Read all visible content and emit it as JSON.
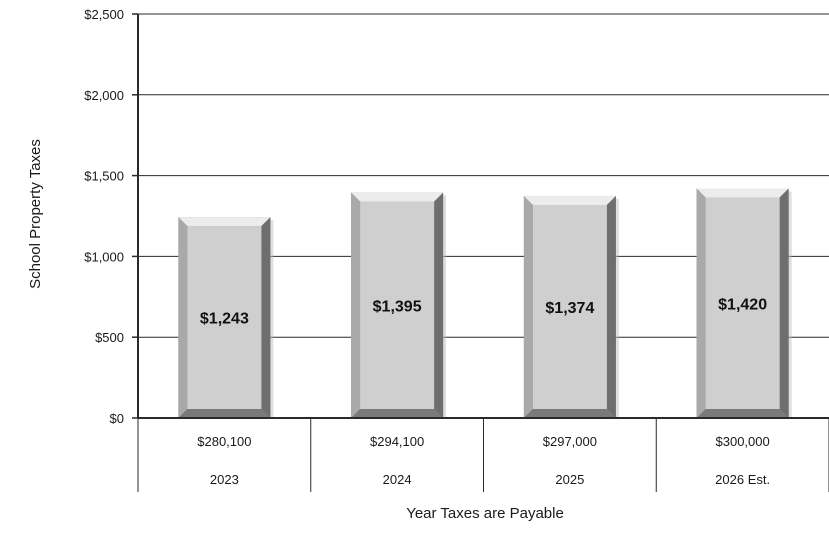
{
  "chart_data": {
    "type": "bar",
    "categories": [
      "2023",
      "2024",
      "2025",
      "2026 Est."
    ],
    "values": [
      1243,
      1395,
      1374,
      1420
    ],
    "value_labels": [
      "$1,243",
      "$1,395",
      "$1,374",
      "$1,420"
    ],
    "category_values": [
      "$280,100",
      "$294,100",
      "$297,000",
      "$300,000"
    ],
    "ylabel": "School Property Taxes",
    "xlabel": "Year Taxes are Payable",
    "ylim": [
      0,
      2500
    ],
    "yticks": [
      0,
      500,
      1000,
      1500,
      2000,
      2500
    ],
    "ytick_labels": [
      "$0",
      "$500",
      "$1,000",
      "$1,500",
      "$2,000",
      "$2,500"
    ],
    "grid": true,
    "legend": "none"
  },
  "colors": {
    "bar_face": "#cfcfcf",
    "bar_edge_light": "#ececec",
    "bar_edge_dark": "#6e6e6e",
    "bar_side": "#8f8f8f",
    "axis": "#2a2a2a",
    "grid": "#2a2a2a"
  }
}
